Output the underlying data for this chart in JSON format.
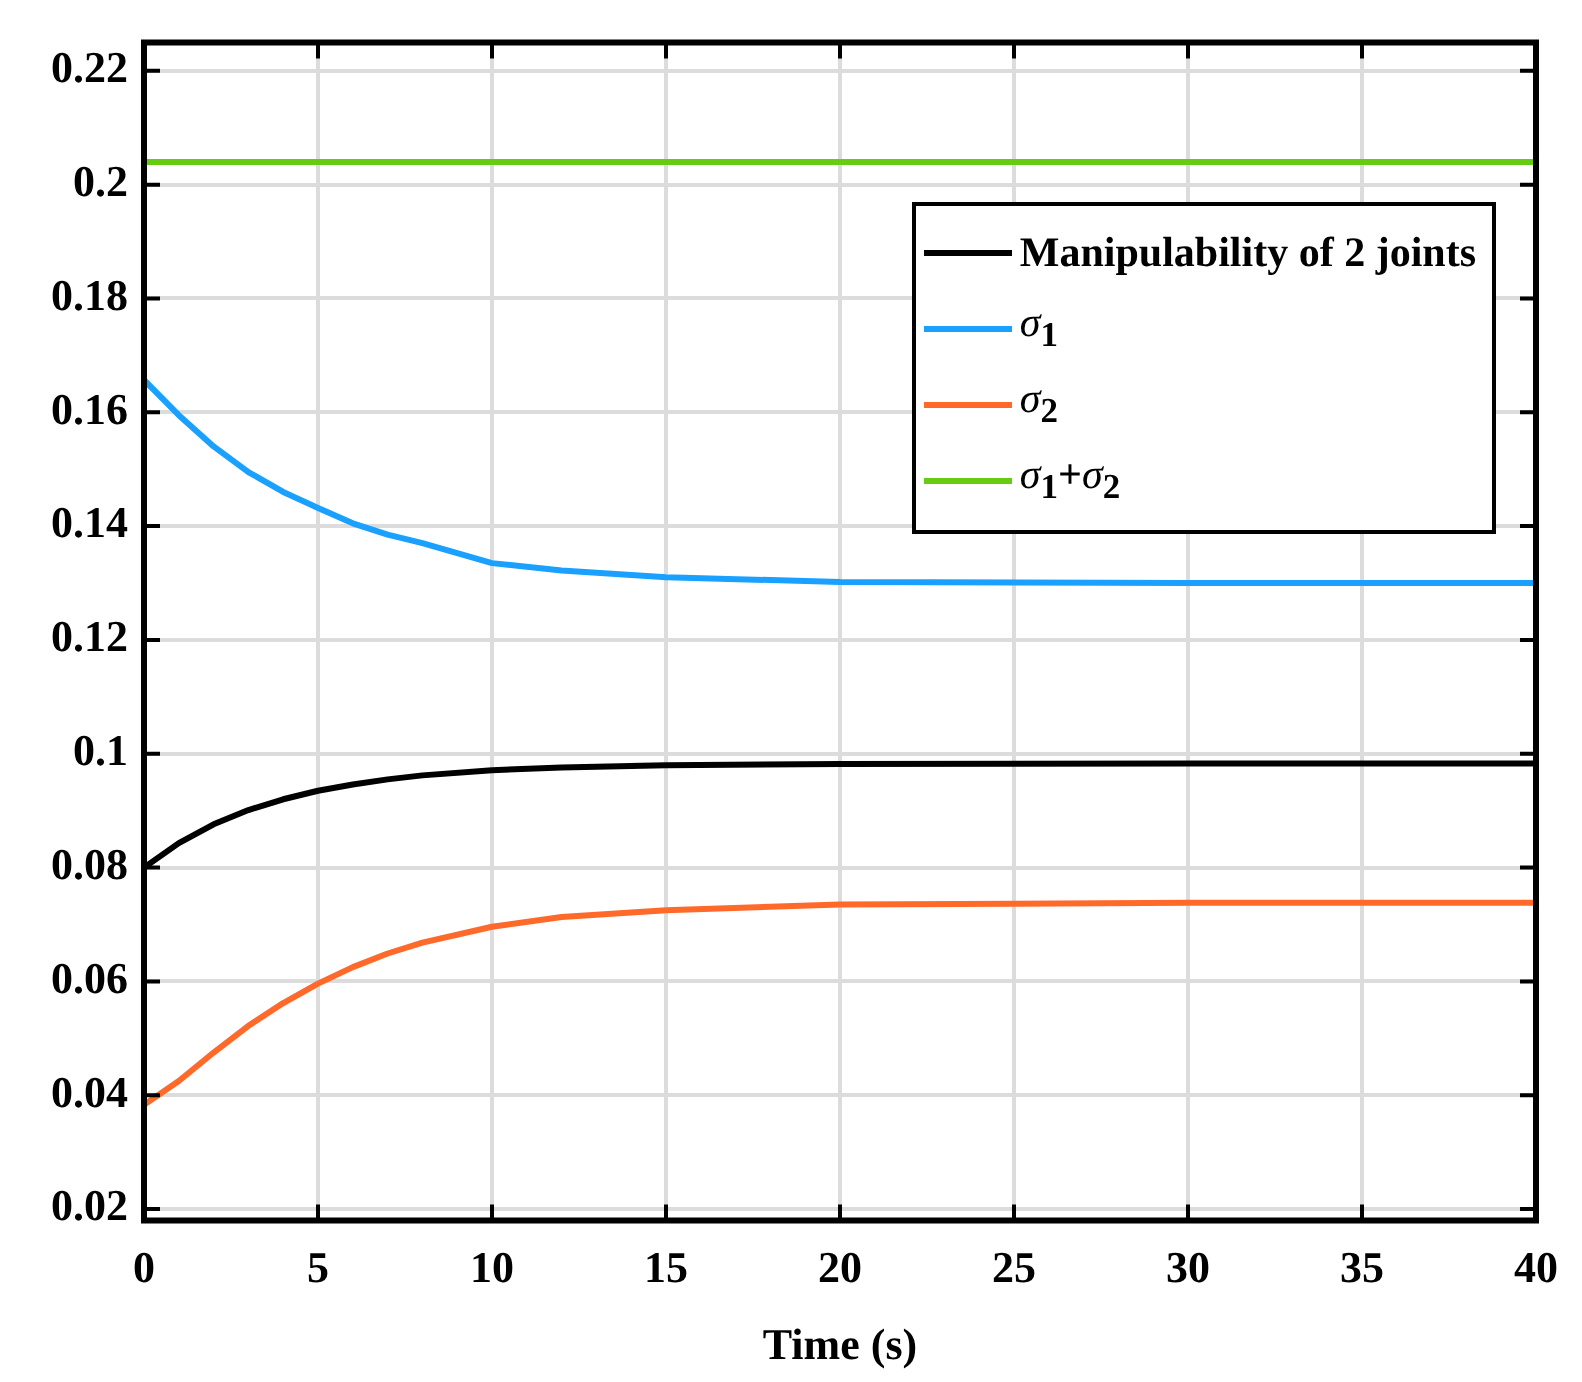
{
  "chart_data": {
    "type": "line",
    "xlabel": "Time (s)",
    "xlim": [
      0,
      40
    ],
    "xticks": [
      0,
      5,
      10,
      15,
      20,
      25,
      30,
      35,
      40
    ],
    "ylim": [
      0.018,
      0.225
    ],
    "yticks": [
      0.02,
      0.04,
      0.06,
      0.08,
      0.1,
      0.12,
      0.14,
      0.16,
      0.18,
      0.2,
      0.22
    ],
    "grid": true,
    "legend": "top right",
    "marker": "none",
    "line_style": "solid",
    "series": [
      {
        "name": "Manipulability of 2 joints",
        "color": "#000000",
        "x": [
          0,
          1,
          2,
          3,
          4,
          5,
          6,
          7,
          8,
          10,
          12,
          15,
          20,
          30,
          40
        ],
        "values": [
          0.08,
          0.0843,
          0.0876,
          0.0901,
          0.092,
          0.0935,
          0.0946,
          0.0955,
          0.0962,
          0.0971,
          0.0976,
          0.098,
          0.0982,
          0.0983,
          0.0983
        ]
      },
      {
        "name": "σ$_{1}$",
        "color": "#1aa1ff",
        "x": [
          0,
          1,
          2,
          3,
          4,
          5,
          6,
          7,
          8,
          10,
          12,
          15,
          20,
          30,
          40
        ],
        "values": [
          0.1657,
          0.1595,
          0.154,
          0.1495,
          0.146,
          0.1432,
          0.1405,
          0.1385,
          0.137,
          0.1335,
          0.1322,
          0.131,
          0.1302,
          0.13,
          0.13
        ]
      },
      {
        "name": "σ$_{2}$",
        "color": "#ff6a2a",
        "x": [
          0,
          1,
          2,
          3,
          4,
          5,
          6,
          7,
          8,
          10,
          12,
          15,
          20,
          30,
          40
        ],
        "values": [
          0.0383,
          0.0425,
          0.0475,
          0.0522,
          0.0562,
          0.0596,
          0.0625,
          0.0649,
          0.0668,
          0.0696,
          0.0713,
          0.0725,
          0.0735,
          0.0738,
          0.0738
        ]
      },
      {
        "name": "σ$_{1}$+σ$_{2}$",
        "color": "#66cc11",
        "x": [
          0,
          40
        ],
        "values": [
          0.204,
          0.204
        ]
      }
    ]
  }
}
